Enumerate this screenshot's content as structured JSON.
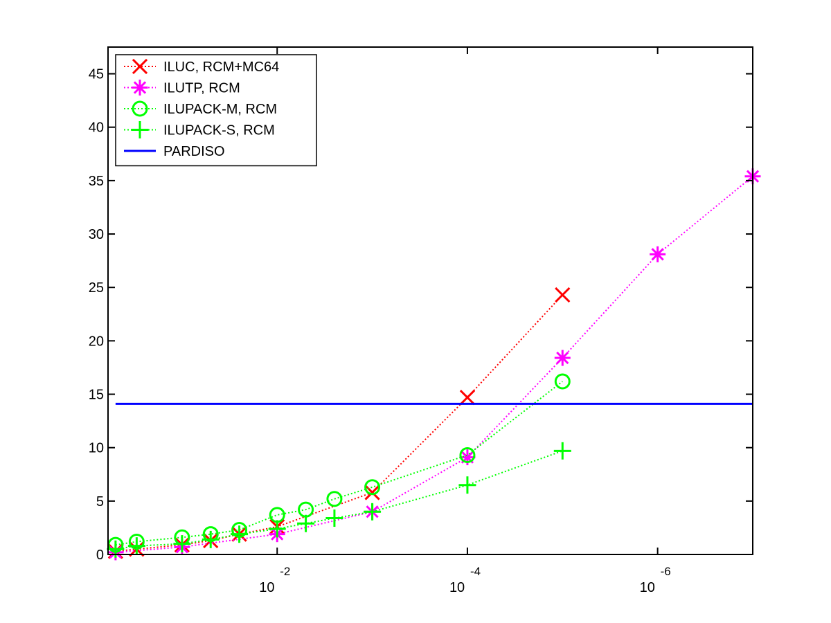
{
  "chart_data": {
    "type": "line",
    "title": "",
    "xlabel": "",
    "ylabel": "",
    "x_axis": {
      "scale": "log",
      "reversed": true,
      "range": [
        0.6,
        1e-07
      ],
      "tick_values": [
        0.01,
        0.0001,
        1e-06
      ],
      "tick_base_labels": [
        "10",
        "10",
        "10"
      ],
      "tick_exponent_labels": [
        "-2",
        "-4",
        "-6"
      ]
    },
    "y_axis": {
      "range": [
        0,
        47.5
      ],
      "tick_values": [
        0,
        5,
        10,
        15,
        20,
        25,
        30,
        35,
        40,
        45
      ],
      "tick_labels": [
        "0",
        "5",
        "10",
        "15",
        "20",
        "25",
        "30",
        "35",
        "40",
        "45"
      ]
    },
    "grid": false,
    "legend_position": "top-left",
    "series": [
      {
        "name": "ILUC, RCM+MC64",
        "color": "#ff0000",
        "marker": "x-mark",
        "line_style": "dotted",
        "points": [
          [
            0.5,
            0.3
          ],
          [
            0.3,
            0.5
          ],
          [
            0.1,
            0.9
          ],
          [
            0.05,
            1.3
          ],
          [
            0.025,
            1.9
          ],
          [
            0.01,
            2.6
          ],
          [
            0.001,
            5.8
          ],
          [
            0.0001,
            14.7
          ],
          [
            1e-05,
            24.3
          ]
        ]
      },
      {
        "name": "ILUTP, RCM",
        "color": "#ff00ff",
        "marker": "asterisk",
        "line_style": "dotted",
        "points": [
          [
            0.5,
            0.2
          ],
          [
            0.1,
            0.7
          ],
          [
            0.01,
            1.9
          ],
          [
            0.001,
            4.0
          ],
          [
            0.0001,
            9.1
          ],
          [
            1e-05,
            18.4
          ],
          [
            1e-06,
            28.1
          ],
          [
            1e-07,
            35.4
          ]
        ]
      },
      {
        "name": "ILUPACK-M, RCM",
        "color": "#00ff00",
        "marker": "circle",
        "line_style": "dotted",
        "points": [
          [
            0.5,
            0.9
          ],
          [
            0.3,
            1.2
          ],
          [
            0.1,
            1.6
          ],
          [
            0.05,
            1.9
          ],
          [
            0.025,
            2.3
          ],
          [
            0.01,
            3.7
          ],
          [
            0.005,
            4.2
          ],
          [
            0.0025,
            5.2
          ],
          [
            0.001,
            6.3
          ],
          [
            0.0001,
            9.3
          ],
          [
            1e-05,
            16.2
          ]
        ]
      },
      {
        "name": "ILUPACK-S, RCM",
        "color": "#00ff00",
        "marker": "plus",
        "line_style": "dotted",
        "points": [
          [
            0.5,
            0.5
          ],
          [
            0.3,
            0.8
          ],
          [
            0.1,
            1.0
          ],
          [
            0.05,
            1.4
          ],
          [
            0.025,
            1.9
          ],
          [
            0.01,
            2.4
          ],
          [
            0.005,
            2.9
          ],
          [
            0.0025,
            3.4
          ],
          [
            0.001,
            4.0
          ],
          [
            0.0001,
            6.5
          ],
          [
            1e-05,
            9.7
          ]
        ]
      },
      {
        "name": "PARDISO",
        "color": "#0000ff",
        "marker": "none",
        "line_style": "solid",
        "constant_y": 14.1
      }
    ]
  }
}
